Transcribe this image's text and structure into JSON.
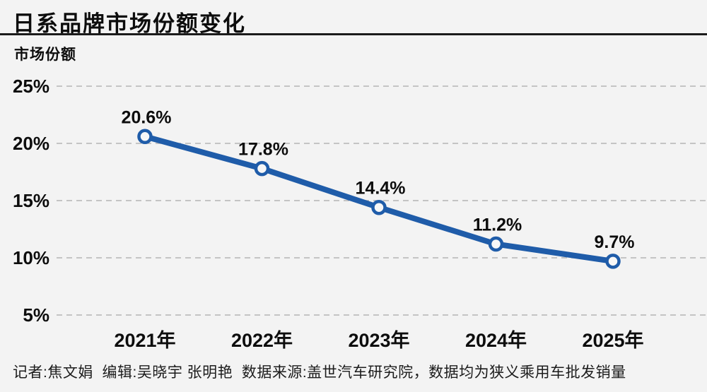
{
  "header": {
    "title": "日系品牌市场份额变化"
  },
  "chart_data": {
    "type": "line",
    "title": "日系品牌市场份额变化",
    "xlabel": "",
    "ylabel": "市场份额",
    "categories": [
      "2021年",
      "2022年",
      "2023年",
      "2024年",
      "2025年"
    ],
    "series": [
      {
        "name": "日系品牌市场份额",
        "values": [
          20.6,
          17.8,
          14.4,
          11.2,
          9.7
        ]
      }
    ],
    "point_labels": [
      "20.6%",
      "17.8%",
      "14.4%",
      "11.2%",
      "9.7%"
    ],
    "y_ticks": [
      {
        "label": "25%",
        "value": 25
      },
      {
        "label": "20%",
        "value": 20
      },
      {
        "label": "15%",
        "value": 15
      },
      {
        "label": "10%",
        "value": 10
      },
      {
        "label": "5%",
        "value": 5
      }
    ],
    "ylim": [
      5,
      25
    ],
    "grid": "horizontal-dashed",
    "legend_position": "none",
    "marker_style": "open-circle"
  },
  "footer": {
    "credits": "记者:焦文娟  编辑:吴晓宇 张明艳  数据来源:盖世汽车研究院，数据均为狭义乘用车批发销量"
  },
  "colors": {
    "background": "#f3f3f3",
    "line": "#1f5ca9",
    "marker_fill": "#f7f7f7",
    "grid": "#b5b5b5",
    "text": "#0d0d0d",
    "divider": "#1b1b1b"
  }
}
